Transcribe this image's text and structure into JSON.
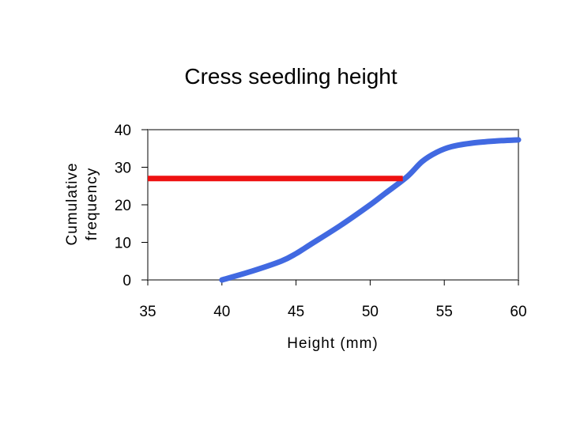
{
  "chart_data": {
    "type": "line",
    "title": "Cress seedling height",
    "xlabel": "Height (mm)",
    "ylabel_lines": [
      "Cumulative",
      "frequency"
    ],
    "xlim": [
      35,
      60
    ],
    "ylim": [
      0,
      40
    ],
    "x_ticks": [
      35,
      40,
      45,
      50,
      55,
      60
    ],
    "y_ticks": [
      0,
      10,
      20,
      30,
      40
    ],
    "grid": false,
    "series": [
      {
        "color": "#4169e1",
        "x": [
          40,
          42,
          44,
          45,
          46,
          48,
          50,
          51,
          52.5,
          53.5,
          54.5,
          55.5,
          57,
          58.5,
          60
        ],
        "y": [
          0,
          2.3,
          5,
          7,
          9.5,
          14.5,
          20,
          23,
          27.5,
          31.5,
          34,
          35.5,
          36.5,
          37,
          37.3
        ]
      }
    ],
    "reference_line": {
      "color": "#ee1111",
      "x": [
        35,
        52.2
      ],
      "y": [
        27,
        27
      ]
    }
  }
}
